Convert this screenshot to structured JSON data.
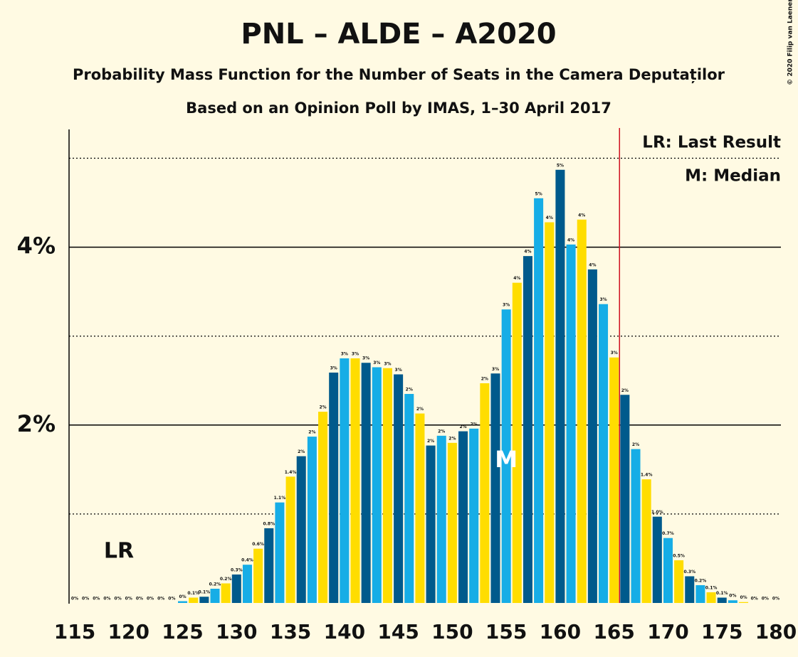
{
  "chart_data": {
    "type": "bar",
    "title": "PNL – ALDE – A2020",
    "subtitle": "Probability Mass Function for the Number of Seats in the Camera Deputaților",
    "subtitle2": "Based on an Opinion Poll by IMAS, 1–30 April 2017",
    "copyright": "© 2020 Filip van Laenen",
    "legend": [
      "LR: Last Result",
      "M: Median"
    ],
    "x": [
      115,
      116,
      117,
      118,
      119,
      120,
      121,
      122,
      123,
      124,
      125,
      126,
      127,
      128,
      129,
      130,
      131,
      132,
      133,
      134,
      135,
      136,
      137,
      138,
      139,
      140,
      141,
      142,
      143,
      144,
      145,
      146,
      147,
      148,
      149,
      150,
      151,
      152,
      153,
      154,
      155,
      156,
      157,
      158,
      159,
      160,
      161,
      162,
      163,
      164,
      165,
      166,
      167,
      168,
      169,
      170,
      171,
      172,
      173,
      174,
      175,
      176,
      177,
      178,
      179,
      180
    ],
    "values": [
      0,
      0,
      0,
      0,
      0,
      0,
      0,
      0,
      0,
      0,
      0.02,
      0.06,
      0.07,
      0.16,
      0.22,
      0.32,
      0.43,
      0.61,
      0.84,
      1.13,
      1.42,
      1.65,
      1.87,
      2.15,
      2.59,
      2.75,
      2.75,
      2.7,
      2.65,
      2.64,
      2.57,
      2.35,
      2.13,
      1.77,
      1.88,
      1.8,
      1.93,
      1.96,
      2.47,
      2.58,
      3.3,
      3.6,
      3.9,
      4.55,
      4.28,
      4.87,
      4.03,
      4.31,
      3.75,
      3.36,
      2.76,
      2.34,
      1.73,
      1.39,
      0.97,
      0.73,
      0.48,
      0.3,
      0.2,
      0.12,
      0.06,
      0.03,
      0.01,
      0,
      0,
      0
    ],
    "value_labels": [
      "0%",
      "0%",
      "0%",
      "0%",
      "0%",
      "0%",
      "0%",
      "0%",
      "0%",
      "0%",
      "0%",
      "0.1%",
      "0.1%",
      "0.2%",
      "0.2%",
      "0.3%",
      "0.4%",
      "0.6%",
      "0.8%",
      "1.1%",
      "1.4%",
      "2%",
      "2%",
      "2%",
      "3%",
      "3%",
      "3%",
      "3%",
      "3%",
      "3%",
      "3%",
      "2%",
      "2%",
      "2%",
      "2%",
      "2%",
      "2%",
      "2%",
      "2%",
      "3%",
      "3%",
      "4%",
      "4%",
      "5%",
      "4%",
      "5%",
      "4%",
      "4%",
      "4%",
      "3%",
      "3%",
      "2%",
      "2%",
      "1.4%",
      "1.0%",
      "0.7%",
      "0.5%",
      "0.3%",
      "0.2%",
      "0.1%",
      "0.1%",
      "0%",
      "0%",
      "0%",
      "0%",
      "0%"
    ],
    "colors": [
      "#005a8c",
      "#16ade6",
      "#ffdd00"
    ],
    "xlim": [
      115,
      180
    ],
    "xticks": [
      115,
      120,
      125,
      130,
      135,
      140,
      145,
      150,
      155,
      160,
      165,
      170,
      175,
      180
    ],
    "ylim": [
      0,
      5.3
    ],
    "yticks": [
      {
        "value": 2,
        "label": "2%"
      },
      {
        "value": 4,
        "label": "4%"
      }
    ],
    "minor_gridlines": [
      1,
      3,
      5
    ],
    "last_result": 166,
    "last_result_label": "LR",
    "median": 155,
    "median_label": "M"
  }
}
